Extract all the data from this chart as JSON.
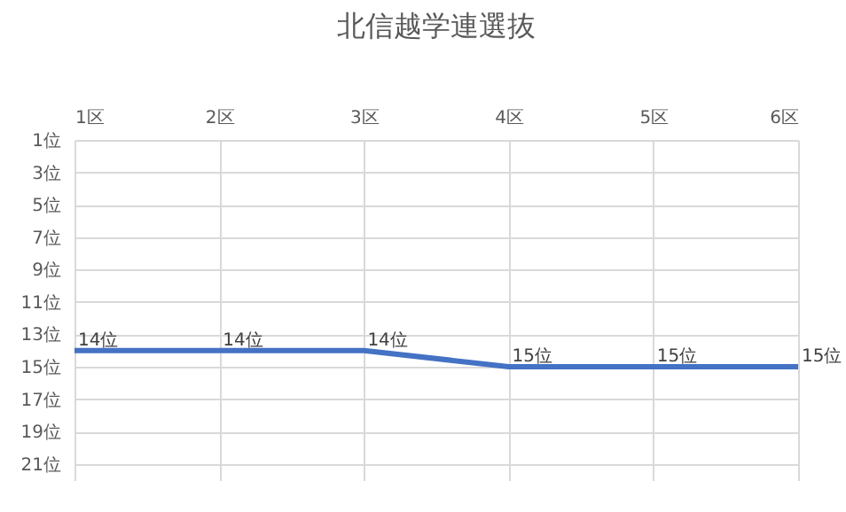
{
  "chart_data": {
    "type": "line",
    "title": "北信越学連選抜",
    "categories": [
      "1区",
      "2区",
      "3区",
      "4区",
      "5区",
      "6区"
    ],
    "series": [
      {
        "color": "#4472c4",
        "values": [
          14,
          14,
          14,
          15,
          15,
          15
        ],
        "value_labels": [
          "14位",
          "14位",
          "14位",
          "15位",
          "15位",
          "15位"
        ]
      }
    ],
    "ylim": [
      22,
      1
    ],
    "yticks": [
      {
        "value": 1,
        "label": "1位"
      },
      {
        "value": 3,
        "label": "3位"
      },
      {
        "value": 5,
        "label": "5位"
      },
      {
        "value": 7,
        "label": "7位"
      },
      {
        "value": 9,
        "label": "9位"
      },
      {
        "value": 11,
        "label": "11位"
      },
      {
        "value": 13,
        "label": "13位"
      },
      {
        "value": 15,
        "label": "15位"
      },
      {
        "value": 17,
        "label": "17位"
      },
      {
        "value": 19,
        "label": "19位"
      },
      {
        "value": 21,
        "label": "21位"
      }
    ],
    "grid": true,
    "legend": false,
    "marker": "none",
    "line_style": "solid"
  }
}
